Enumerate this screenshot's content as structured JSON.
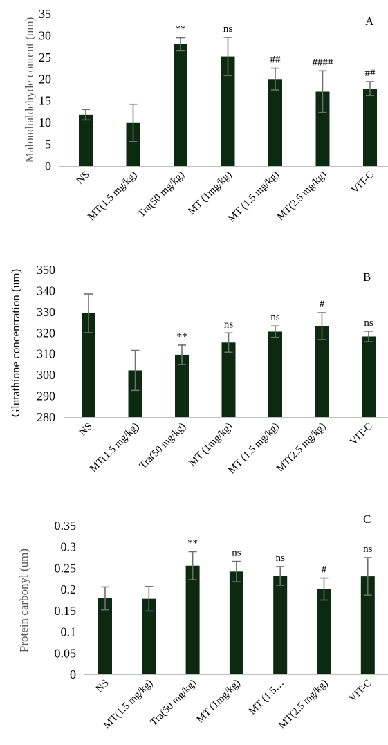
{
  "colors": {
    "bar": "#0c2a10",
    "error": "#6f6f6f",
    "axis": "#bfbfbf"
  },
  "chart_data": [
    {
      "type": "bar",
      "panel": "A",
      "ylabel": "Malondialdehyde content (um)",
      "ylabel_color": "#595959",
      "ylim": [
        0,
        35
      ],
      "yticks": [
        "0",
        "5",
        "10",
        "15",
        "20",
        "25",
        "30",
        "35"
      ],
      "categories": [
        "NS",
        "MT(1.5 mg/kg)",
        "Tra(50 mg/kg)",
        "MT (1mg/kg)",
        "MT (1.5 mg/kg)",
        "MT(2.5 mg/kg)",
        "VIT-C"
      ],
      "values": [
        11.8,
        9.9,
        28.0,
        25.2,
        20.0,
        17.1,
        17.8
      ],
      "errors": [
        1.2,
        4.3,
        1.5,
        4.4,
        2.5,
        4.8,
        1.6
      ],
      "annotations": [
        "",
        "",
        "**",
        "ns",
        "##",
        "####",
        "##"
      ],
      "grid": false,
      "legend": false
    },
    {
      "type": "bar",
      "panel": "B",
      "ylabel": "Glutathione concentration (um)",
      "ylabel_color": "#000000",
      "ylim": [
        280,
        350
      ],
      "yticks": [
        "280",
        "290",
        "300",
        "310",
        "320",
        "330",
        "340",
        "350"
      ],
      "categories": [
        "NS",
        "MT(1.5 mg/kg)",
        "Tra(50 mg/kg)",
        "MT (1mg/kg)",
        "MT (1.5 mg/kg)",
        "MT(2.5 mg/kg)",
        "VIT-C"
      ],
      "values": [
        329.3,
        302.2,
        309.6,
        315.4,
        320.6,
        323.2,
        318.3
      ],
      "errors": [
        9.2,
        9.5,
        4.6,
        4.6,
        2.7,
        6.4,
        2.5
      ],
      "annotations": [
        "",
        "",
        "**",
        "ns",
        "ns",
        "#",
        "ns"
      ],
      "grid": false,
      "legend": false
    },
    {
      "type": "bar",
      "panel": "C",
      "ylabel": "Protein carbonyl (um)",
      "ylabel_color": "#595959",
      "ylim": [
        0,
        0.35
      ],
      "yticks": [
        "0",
        "0.05",
        "0.1",
        "0.15",
        "0.2",
        "0.25",
        "0.3",
        "0.35"
      ],
      "categories": [
        "NS",
        "MT(1.5 mg/kg)",
        "Tra(50 mg/kg)",
        "MT (1mg/kg)",
        "MT (1.5…",
        "MT(2.5 mg/kg)",
        "VIT-C"
      ],
      "values": [
        0.179,
        0.178,
        0.256,
        0.242,
        0.232,
        0.201,
        0.231
      ],
      "errors": [
        0.027,
        0.029,
        0.033,
        0.024,
        0.022,
        0.026,
        0.044
      ],
      "annotations": [
        "",
        "",
        "**",
        "ns",
        "ns",
        "#",
        "ns"
      ],
      "grid": false,
      "legend": false
    }
  ]
}
